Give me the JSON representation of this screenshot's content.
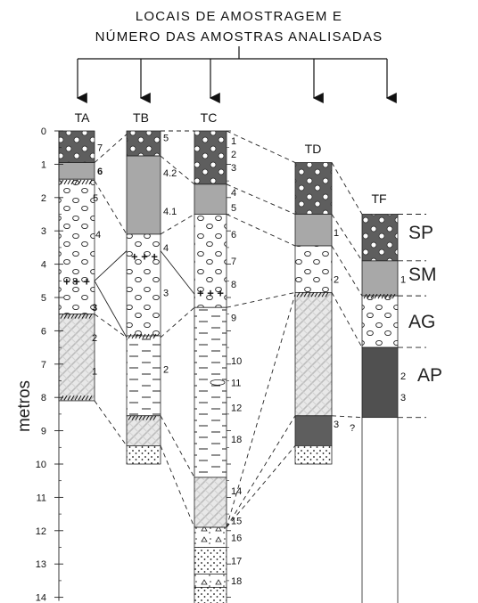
{
  "header": {
    "line1": "LOCAIS DE AMOSTRAGEM E",
    "line2": "NÚMERO DAS AMOSTRAS ANALISADAS"
  },
  "axis": {
    "title": "metros",
    "ticks": [
      "0",
      "1",
      "2",
      "3",
      "4",
      "5",
      "6",
      "7",
      "8",
      "9",
      "10",
      "11",
      "12",
      "13",
      "14"
    ]
  },
  "columns": [
    {
      "id": "TA",
      "label": "TA"
    },
    {
      "id": "TB",
      "label": "TB"
    },
    {
      "id": "TC",
      "label": "TC"
    },
    {
      "id": "TD",
      "label": "TD"
    },
    {
      "id": "TF",
      "label": "TF"
    }
  ],
  "units": [
    {
      "code": "SP",
      "label": "SP"
    },
    {
      "code": "SM",
      "label": "SM"
    },
    {
      "code": "AG",
      "label": "AG"
    },
    {
      "code": "AP",
      "label": "AP"
    }
  ],
  "samples": {
    "TA": [
      "7",
      "6",
      "5",
      "4",
      "8",
      "3",
      "2",
      "1"
    ],
    "TB": [
      "5",
      "4.2",
      "4.1",
      "4",
      "3",
      "2"
    ],
    "TC": [
      "1",
      "2",
      "3",
      "4",
      "5",
      "6",
      "7",
      "8",
      "9",
      "10",
      "11",
      "12",
      "18",
      "14",
      "15",
      "16",
      "17",
      "18"
    ],
    "TD": [
      "1",
      "2",
      "3",
      "?"
    ],
    "TF": [
      "1",
      "2",
      "3"
    ]
  },
  "colors": {
    "SP": "#5e5e5e",
    "SM": "#a8a8a8",
    "AG": "#ffffff",
    "AP_TF": "#505050",
    "lines": "#222222"
  }
}
